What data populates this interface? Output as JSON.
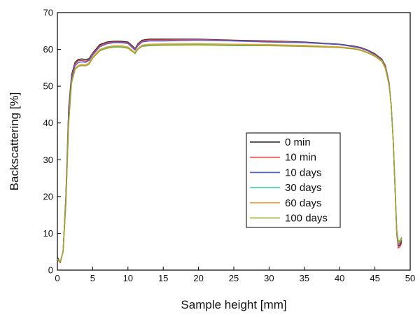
{
  "chart_data": {
    "type": "line",
    "title": "",
    "xlabel": "Sample height [mm]",
    "ylabel": "Backscattering [%]",
    "xlim": [
      0,
      50
    ],
    "ylim": [
      0,
      70
    ],
    "x_ticks": [
      "0",
      "5",
      "10",
      "15",
      "20",
      "25",
      "30",
      "35",
      "40",
      "45",
      "50"
    ],
    "y_ticks": [
      "0",
      "10",
      "20",
      "30",
      "40",
      "50",
      "60",
      "70"
    ],
    "grid": false,
    "legend_position": "center-right",
    "series": [
      {
        "name": "0 min",
        "color": "#222222",
        "points": [
          [
            0,
            3.5
          ],
          [
            0.4,
            2
          ],
          [
            0.8,
            5
          ],
          [
            1.2,
            20
          ],
          [
            1.6,
            44
          ],
          [
            2,
            53
          ],
          [
            2.5,
            56.5
          ],
          [
            3,
            57.3
          ],
          [
            3.5,
            57.4
          ],
          [
            4,
            57.2
          ],
          [
            4.5,
            57.5
          ],
          [
            5,
            59
          ],
          [
            6,
            61.3
          ],
          [
            7,
            62
          ],
          [
            8,
            62.2
          ],
          [
            9,
            62.2
          ],
          [
            10,
            62
          ],
          [
            10.6,
            61
          ],
          [
            11,
            60.2
          ],
          [
            11.4,
            61.5
          ],
          [
            12,
            62.5
          ],
          [
            13,
            62.8
          ],
          [
            15,
            62.8
          ],
          [
            20,
            62.8
          ],
          [
            25,
            62.5
          ],
          [
            30,
            62.3
          ],
          [
            35,
            62
          ],
          [
            40,
            61.4
          ],
          [
            42,
            60.9
          ],
          [
            43,
            60.5
          ],
          [
            44,
            59.8
          ],
          [
            45,
            58.8
          ],
          [
            46,
            57.3
          ],
          [
            46.5,
            55.5
          ],
          [
            47,
            51
          ],
          [
            47.3,
            45
          ],
          [
            47.6,
            35
          ],
          [
            47.9,
            20
          ],
          [
            48.1,
            10
          ],
          [
            48.3,
            6.5
          ],
          [
            48.6,
            7
          ],
          [
            48.8,
            8
          ]
        ]
      },
      {
        "name": "10 min",
        "color": "#e8403c",
        "points": [
          [
            0,
            3
          ],
          [
            0.4,
            2
          ],
          [
            0.8,
            5
          ],
          [
            1.2,
            20
          ],
          [
            1.6,
            43
          ],
          [
            2,
            52.5
          ],
          [
            2.5,
            56
          ],
          [
            3,
            57
          ],
          [
            3.5,
            57
          ],
          [
            4,
            56.8
          ],
          [
            4.5,
            57.2
          ],
          [
            5,
            58.8
          ],
          [
            6,
            61
          ],
          [
            7,
            61.8
          ],
          [
            8,
            62
          ],
          [
            9,
            62
          ],
          [
            10,
            61.8
          ],
          [
            10.6,
            60.8
          ],
          [
            11,
            60
          ],
          [
            11.4,
            61.3
          ],
          [
            12,
            62.3
          ],
          [
            13,
            62.6
          ],
          [
            15,
            62.6
          ],
          [
            20,
            62.7
          ],
          [
            25,
            62.4
          ],
          [
            30,
            62.2
          ],
          [
            35,
            61.9
          ],
          [
            40,
            61.3
          ],
          [
            42,
            60.8
          ],
          [
            43,
            60.4
          ],
          [
            44,
            59.7
          ],
          [
            45,
            58.6
          ],
          [
            46,
            57.1
          ],
          [
            46.5,
            55.3
          ],
          [
            47,
            50.8
          ],
          [
            47.3,
            45
          ],
          [
            47.6,
            35
          ],
          [
            47.9,
            20
          ],
          [
            48.1,
            10
          ],
          [
            48.3,
            6
          ],
          [
            48.6,
            6.5
          ],
          [
            48.8,
            7.5
          ]
        ]
      },
      {
        "name": "10 days",
        "color": "#4a5fd6",
        "points": [
          [
            0,
            3
          ],
          [
            0.4,
            2.2
          ],
          [
            0.8,
            5
          ],
          [
            1.2,
            19
          ],
          [
            1.6,
            42
          ],
          [
            2,
            52
          ],
          [
            2.5,
            55.5
          ],
          [
            3,
            56.5
          ],
          [
            3.5,
            56.6
          ],
          [
            4,
            56.5
          ],
          [
            4.5,
            57
          ],
          [
            5,
            58.5
          ],
          [
            6,
            60.7
          ],
          [
            7,
            61.5
          ],
          [
            8,
            61.8
          ],
          [
            9,
            61.8
          ],
          [
            10,
            61.6
          ],
          [
            10.6,
            60.5
          ],
          [
            11,
            59.8
          ],
          [
            11.4,
            61
          ],
          [
            12,
            62
          ],
          [
            13,
            62.3
          ],
          [
            15,
            62.3
          ],
          [
            20,
            62.5
          ],
          [
            25,
            62.3
          ],
          [
            30,
            62
          ],
          [
            35,
            61.8
          ],
          [
            40,
            61.3
          ],
          [
            42,
            60.7
          ],
          [
            43,
            60.3
          ],
          [
            44,
            59.6
          ],
          [
            45,
            58.5
          ],
          [
            46,
            57
          ],
          [
            46.5,
            55
          ],
          [
            47,
            50.5
          ],
          [
            47.3,
            45
          ],
          [
            47.6,
            35
          ],
          [
            47.9,
            20
          ],
          [
            48.1,
            10
          ],
          [
            48.3,
            7
          ],
          [
            48.6,
            7.5
          ],
          [
            48.8,
            8.3
          ]
        ]
      },
      {
        "name": "30 days",
        "color": "#3ecf98",
        "points": [
          [
            0,
            3
          ],
          [
            0.4,
            2.3
          ],
          [
            0.8,
            5
          ],
          [
            1.2,
            18
          ],
          [
            1.6,
            40
          ],
          [
            2,
            51
          ],
          [
            2.5,
            54.5
          ],
          [
            3,
            55.5
          ],
          [
            3.5,
            55.7
          ],
          [
            4,
            55.6
          ],
          [
            4.5,
            56.2
          ],
          [
            5,
            57.8
          ],
          [
            6,
            59.8
          ],
          [
            7,
            60.5
          ],
          [
            8,
            60.8
          ],
          [
            9,
            60.8
          ],
          [
            10,
            60.5
          ],
          [
            10.6,
            59.5
          ],
          [
            11,
            58.8
          ],
          [
            11.4,
            60
          ],
          [
            12,
            61
          ],
          [
            13,
            61.2
          ],
          [
            15,
            61.3
          ],
          [
            20,
            61.4
          ],
          [
            25,
            61.2
          ],
          [
            30,
            61.1
          ],
          [
            35,
            61
          ],
          [
            40,
            60.6
          ],
          [
            42,
            60.2
          ],
          [
            43,
            59.8
          ],
          [
            44,
            59.1
          ],
          [
            45,
            58.2
          ],
          [
            46,
            56.8
          ],
          [
            46.5,
            54.8
          ],
          [
            47,
            50.3
          ],
          [
            47.3,
            45
          ],
          [
            47.6,
            35
          ],
          [
            47.9,
            21
          ],
          [
            48.1,
            11
          ],
          [
            48.3,
            7.8
          ],
          [
            48.6,
            8.2
          ],
          [
            48.8,
            9
          ]
        ]
      },
      {
        "name": "60 days",
        "color": "#f2a03a",
        "points": [
          [
            0,
            3
          ],
          [
            0.4,
            2.2
          ],
          [
            0.8,
            5
          ],
          [
            1.2,
            18
          ],
          [
            1.6,
            40
          ],
          [
            2,
            51
          ],
          [
            2.5,
            54.8
          ],
          [
            3,
            55.7
          ],
          [
            3.5,
            55.9
          ],
          [
            4,
            55.8
          ],
          [
            4.5,
            56.4
          ],
          [
            5,
            58
          ],
          [
            6,
            60
          ],
          [
            7,
            60.7
          ],
          [
            8,
            61
          ],
          [
            9,
            61
          ],
          [
            10,
            60.7
          ],
          [
            10.6,
            59.8
          ],
          [
            11,
            59.2
          ],
          [
            11.4,
            60.3
          ],
          [
            12,
            61.2
          ],
          [
            13,
            61.4
          ],
          [
            15,
            61.5
          ],
          [
            20,
            61.6
          ],
          [
            25,
            61.4
          ],
          [
            30,
            61.3
          ],
          [
            35,
            61.1
          ],
          [
            40,
            60.7
          ],
          [
            42,
            60.3
          ],
          [
            43,
            59.9
          ],
          [
            44,
            59.2
          ],
          [
            45,
            58.3
          ],
          [
            46,
            56.9
          ],
          [
            46.5,
            54.9
          ],
          [
            47,
            50.4
          ],
          [
            47.3,
            45
          ],
          [
            47.6,
            35
          ],
          [
            47.9,
            20.5
          ],
          [
            48.1,
            10.5
          ],
          [
            48.3,
            7.3
          ],
          [
            48.6,
            7.8
          ],
          [
            48.8,
            8.6
          ]
        ]
      },
      {
        "name": "100 days",
        "color": "#9aa62a",
        "points": [
          [
            0,
            3
          ],
          [
            0.4,
            2.2
          ],
          [
            0.8,
            5
          ],
          [
            1.2,
            18
          ],
          [
            1.6,
            40
          ],
          [
            2,
            50.8
          ],
          [
            2.5,
            54.5
          ],
          [
            3,
            55.4
          ],
          [
            3.5,
            55.6
          ],
          [
            4,
            55.5
          ],
          [
            4.5,
            56
          ],
          [
            5,
            57.6
          ],
          [
            6,
            59.6
          ],
          [
            7,
            60.3
          ],
          [
            8,
            60.6
          ],
          [
            9,
            60.6
          ],
          [
            10,
            60.3
          ],
          [
            10.6,
            59.4
          ],
          [
            11,
            59
          ],
          [
            11.4,
            60
          ],
          [
            12,
            60.8
          ],
          [
            13,
            61
          ],
          [
            15,
            61.1
          ],
          [
            20,
            61.2
          ],
          [
            25,
            61
          ],
          [
            30,
            61
          ],
          [
            35,
            60.8
          ],
          [
            40,
            60.5
          ],
          [
            42,
            60.1
          ],
          [
            43,
            59.7
          ],
          [
            44,
            59
          ],
          [
            45,
            58.1
          ],
          [
            46,
            56.7
          ],
          [
            46.5,
            54.7
          ],
          [
            47,
            50.2
          ],
          [
            47.3,
            45
          ],
          [
            47.6,
            35
          ],
          [
            47.9,
            21
          ],
          [
            48.1,
            11
          ],
          [
            48.3,
            7.6
          ],
          [
            48.6,
            8
          ],
          [
            48.8,
            8.8
          ]
        ]
      }
    ]
  }
}
